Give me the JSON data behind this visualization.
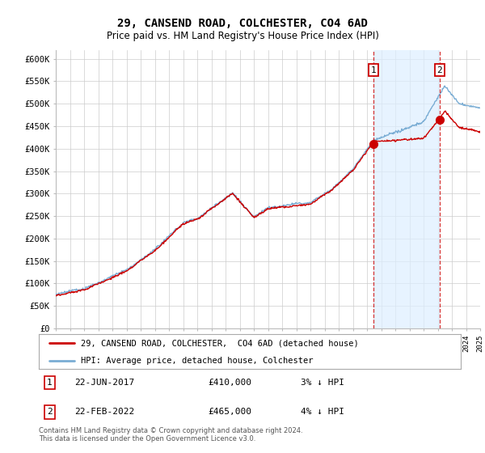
{
  "title": "29, CANSEND ROAD, COLCHESTER, CO4 6AD",
  "subtitle": "Price paid vs. HM Land Registry's House Price Index (HPI)",
  "ylabel_ticks": [
    "£0",
    "£50K",
    "£100K",
    "£150K",
    "£200K",
    "£250K",
    "£300K",
    "£350K",
    "£400K",
    "£450K",
    "£500K",
    "£550K",
    "£600K"
  ],
  "ytick_values": [
    0,
    50000,
    100000,
    150000,
    200000,
    250000,
    300000,
    350000,
    400000,
    450000,
    500000,
    550000,
    600000
  ],
  "x_start_year": 1995,
  "x_end_year": 2025,
  "hpi_color": "#7aadd4",
  "price_color": "#cc0000",
  "shade_color": "#ddeeff",
  "sale1_year": 2017.47,
  "sale1_price": 410000,
  "sale2_year": 2022.13,
  "sale2_price": 465000,
  "legend_label_price": "29, CANSEND ROAD, COLCHESTER,  CO4 6AD (detached house)",
  "legend_label_hpi": "HPI: Average price, detached house, Colchester",
  "annotation1_date": "22-JUN-2017",
  "annotation1_price": "£410,000",
  "annotation1_hpi": "3% ↓ HPI",
  "annotation2_date": "22-FEB-2022",
  "annotation2_price": "£465,000",
  "annotation2_hpi": "4% ↓ HPI",
  "footer": "Contains HM Land Registry data © Crown copyright and database right 2024.\nThis data is licensed under the Open Government Licence v3.0.",
  "background_color": "#ffffff",
  "grid_color": "#cccccc",
  "vline_color": "#cc0000",
  "box_edge_color": "#cc0000"
}
